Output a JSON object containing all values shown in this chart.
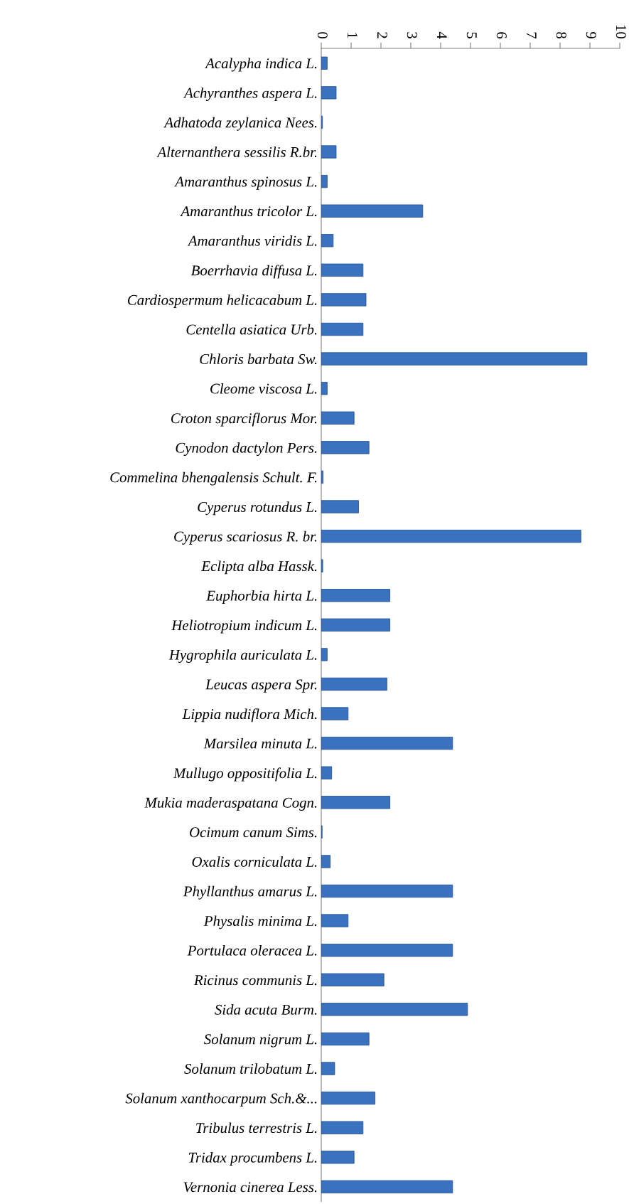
{
  "chart_data": {
    "type": "bar",
    "orientation": "horizontal",
    "color": "#3a72c0",
    "categories": [
      "Acalypha indica L.",
      "Achyranthes aspera L.",
      "Adhatoda zeylanica Nees.",
      "Alternanthera sessilis R.br.",
      "Amaranthus spinosus L.",
      "Amaranthus tricolor L.",
      "Amaranthus viridis L.",
      "Boerrhavia diffusa L.",
      "Cardiospermum helicacabum L.",
      "Centella asiatica Urb.",
      "Chloris barbata Sw.",
      "Cleome viscosa L.",
      "Croton sparciflorus Mor.",
      "Cynodon dactylon Pers.",
      "Commelina bhengalensis Schult. F.",
      "Cyperus rotundus L.",
      "Cyperus scariosus R. br.",
      "Eclipta alba Hassk.",
      "Euphorbia hirta L.",
      "Heliotropium indicum L.",
      "Hygrophila auriculata L.",
      "Leucas aspera Spr.",
      "Lippia nudiflora Mich.",
      "Marsilea minuta L.",
      "Mullugo oppositifolia L.",
      "Mukia maderaspatana Cogn.",
      "Ocimum canum Sims.",
      "Oxalis corniculata L.",
      "Phyllanthus amarus L.",
      "Physalis minima L.",
      "Portulaca oleracea L.",
      "Ricinus communis L.",
      "Sida acuta Burm.",
      "Solanum nigrum L.",
      "Solanum trilobatum L.",
      "Solanum xanthocarpum Sch.&...",
      "Tribulus terrestris L.",
      "Tridax procumbens L.",
      "Vernonia cinerea Less."
    ],
    "values": [
      0.2,
      0.5,
      0.04,
      0.5,
      0.2,
      3.4,
      0.4,
      1.4,
      1.5,
      1.4,
      8.9,
      0.2,
      1.1,
      1.6,
      0.06,
      1.25,
      8.7,
      0.05,
      2.3,
      2.3,
      0.2,
      2.2,
      0.9,
      4.4,
      0.35,
      2.3,
      0.03,
      0.3,
      4.4,
      0.9,
      4.4,
      2.1,
      4.9,
      1.6,
      0.45,
      1.8,
      1.4,
      1.1,
      4.4
    ],
    "xlim": [
      0,
      10
    ],
    "xticks": [
      0,
      1,
      2,
      3,
      4,
      5,
      6,
      7,
      8,
      9,
      10
    ],
    "grid": false,
    "legend": false
  }
}
